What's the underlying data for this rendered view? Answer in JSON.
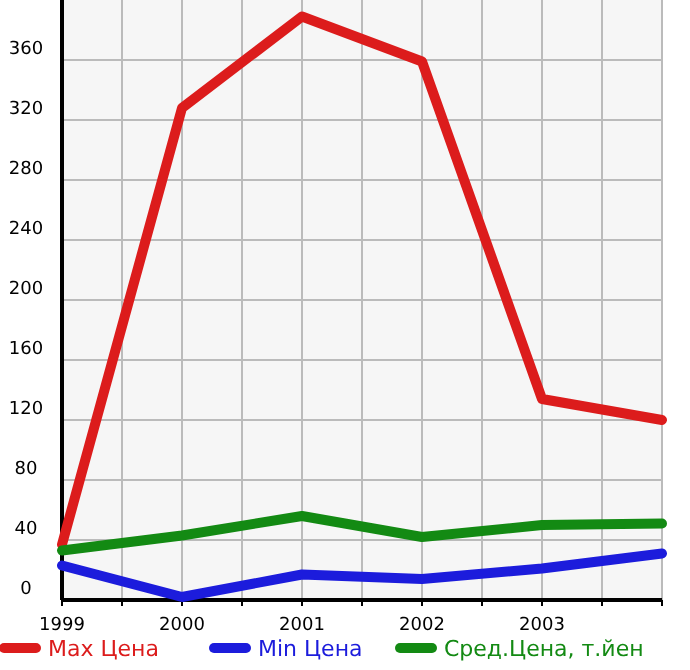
{
  "chart_data": {
    "type": "line",
    "x": [
      1999,
      2000,
      2001,
      2002,
      2003,
      2004
    ],
    "series": [
      {
        "name": "Max Цена",
        "color": "#dc1c1c",
        "values": [
          37,
          328,
          389,
          359,
          134,
          120
        ]
      },
      {
        "name": "Min Цена",
        "color": "#1c1cdc",
        "values": [
          23,
          2,
          17,
          14,
          21,
          31
        ]
      },
      {
        "name": "Сред.Цена, т.йен",
        "color": "#138a13",
        "values": [
          33,
          43,
          56,
          42,
          50,
          51
        ]
      }
    ],
    "xlim": [
      1999,
      2004
    ],
    "xticks": [
      1999,
      {
        "value": 1999.5,
        "label": null
      },
      2000,
      {
        "value": 2000.5,
        "label": null
      },
      2001,
      {
        "value": 2001.5,
        "label": null
      },
      2002,
      {
        "value": 2002.5,
        "label": null
      },
      2003,
      {
        "value": 2003.5,
        "label": null
      },
      {
        "value": 2004,
        "label": null
      }
    ],
    "ylim": [
      0,
      400
    ],
    "yticks": [
      0,
      40,
      80,
      120,
      160,
      200,
      240,
      280,
      320,
      360
    ],
    "grid": true,
    "legend": "bottom",
    "marker": "none",
    "line_style": "solid"
  }
}
